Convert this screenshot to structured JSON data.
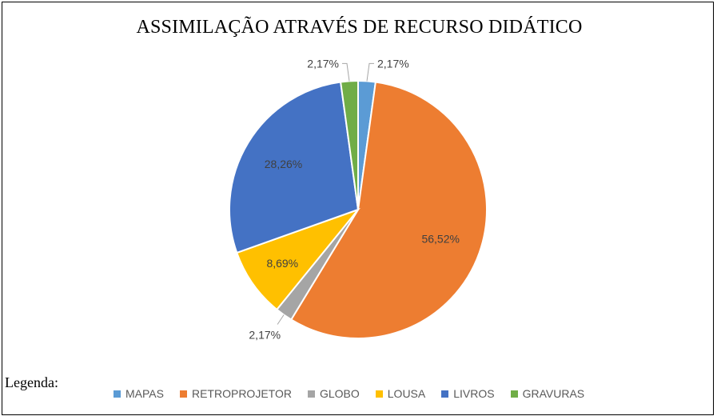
{
  "chart_data": {
    "type": "pie",
    "title": "ASSIMILAÇÃO ATRAVÉS DE RECURSO DIDÁTICO",
    "categories": [
      "MAPAS",
      "RETROPROJETOR",
      "GLOBO",
      "LOUSA",
      "LIVROS",
      "GRAVURAS"
    ],
    "values": [
      2.17,
      56.52,
      2.17,
      8.69,
      28.26,
      2.17
    ],
    "data_labels": [
      "2,17%",
      "56,52%",
      "2,17%",
      "8,69%",
      "28,26%",
      "2,17%"
    ],
    "colors": [
      "#5B9BD5",
      "#ED7D31",
      "#A5A5A5",
      "#FFC000",
      "#4472C4",
      "#70AD47"
    ],
    "legend_position": "bottom"
  },
  "caption": "Legenda:"
}
